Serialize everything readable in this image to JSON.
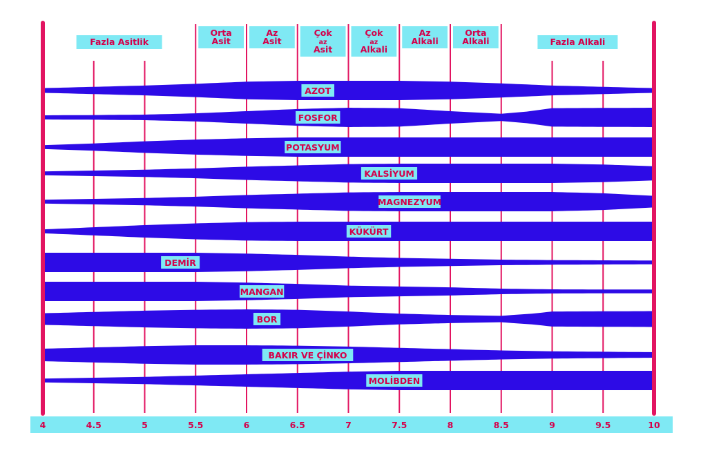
{
  "chart_data": {
    "type": "area",
    "x_axis": {
      "ticks": [
        "4",
        "4.5",
        "5",
        "5.5",
        "6",
        "6.5",
        "7",
        "7.5",
        "8",
        "8.5",
        "9",
        "9.5",
        "10"
      ],
      "range": [
        4,
        10
      ]
    },
    "zones": [
      {
        "label": "Fazla Asitlik",
        "from": 4,
        "to": 5.5
      },
      {
        "label": "Orta Asit",
        "from": 5.5,
        "to": 6
      },
      {
        "label": "Az Asit",
        "from": 6,
        "to": 6.5
      },
      {
        "label": "Çok az Asit",
        "from": 6.5,
        "to": 7
      },
      {
        "label": "Çok az Alkali",
        "from": 7,
        "to": 7.5
      },
      {
        "label": "Az Alkali",
        "from": 7.5,
        "to": 8
      },
      {
        "label": "Orta Alkali",
        "from": 8,
        "to": 8.5
      },
      {
        "label": "Fazla Alkali",
        "from": 8.5,
        "to": 10
      }
    ],
    "series": [
      {
        "name": "AZOT",
        "label_at": 6.7,
        "points": [
          [
            4,
            0.15
          ],
          [
            4.5,
            0.3
          ],
          [
            5,
            0.45
          ],
          [
            5.5,
            0.65
          ],
          [
            6,
            0.9
          ],
          [
            6.5,
            1
          ],
          [
            7,
            1
          ],
          [
            7.5,
            1
          ],
          [
            8,
            0.9
          ],
          [
            8.5,
            0.7
          ],
          [
            9,
            0.45
          ],
          [
            9.5,
            0.3
          ],
          [
            10,
            0.15
          ]
        ]
      },
      {
        "name": "FOSFOR",
        "label_at": 6.7,
        "points": [
          [
            4,
            0.12
          ],
          [
            4.5,
            0.15
          ],
          [
            5,
            0.2
          ],
          [
            5.5,
            0.35
          ],
          [
            6,
            0.6
          ],
          [
            6.5,
            0.85
          ],
          [
            7,
            1
          ],
          [
            7.5,
            0.95
          ],
          [
            8,
            0.6
          ],
          [
            8.5,
            0.3
          ],
          [
            8.75,
            0.55
          ],
          [
            9,
            0.95
          ],
          [
            10,
            1
          ]
        ]
      },
      {
        "name": "POTASYUM",
        "label_at": 6.65,
        "points": [
          [
            4,
            0.1
          ],
          [
            4.5,
            0.3
          ],
          [
            5,
            0.55
          ],
          [
            5.5,
            0.75
          ],
          [
            6,
            0.9
          ],
          [
            6.5,
            1
          ],
          [
            7,
            1
          ],
          [
            7.5,
            1
          ],
          [
            8,
            1
          ],
          [
            8.5,
            1
          ],
          [
            9,
            1
          ],
          [
            9.5,
            1
          ],
          [
            10,
            1
          ]
        ]
      },
      {
        "name": "KALSİYUM",
        "label_at": 7.4,
        "points": [
          [
            4,
            0.1
          ],
          [
            4.5,
            0.2
          ],
          [
            5,
            0.3
          ],
          [
            5.5,
            0.45
          ],
          [
            6,
            0.65
          ],
          [
            6.5,
            0.8
          ],
          [
            7,
            0.95
          ],
          [
            7.5,
            1
          ],
          [
            8,
            1
          ],
          [
            8.5,
            1
          ],
          [
            9,
            1
          ],
          [
            9.5,
            0.9
          ],
          [
            10,
            0.7
          ]
        ]
      },
      {
        "name": "MAGNEZYUM",
        "label_at": 7.6,
        "points": [
          [
            4,
            0.1
          ],
          [
            4.5,
            0.2
          ],
          [
            5,
            0.3
          ],
          [
            5.5,
            0.45
          ],
          [
            6,
            0.65
          ],
          [
            6.5,
            0.8
          ],
          [
            7,
            0.95
          ],
          [
            7.5,
            1
          ],
          [
            8,
            1
          ],
          [
            8.5,
            1
          ],
          [
            9,
            1
          ],
          [
            9.5,
            0.85
          ],
          [
            10,
            0.55
          ]
        ]
      },
      {
        "name": "KÜKÜRT",
        "label_at": 7.2,
        "points": [
          [
            4,
            0.1
          ],
          [
            4.5,
            0.35
          ],
          [
            5,
            0.6
          ],
          [
            5.5,
            0.8
          ],
          [
            6,
            0.95
          ],
          [
            6.5,
            1
          ],
          [
            7,
            1
          ],
          [
            7.5,
            1
          ],
          [
            8,
            1
          ],
          [
            8.5,
            1
          ],
          [
            9,
            1
          ],
          [
            9.5,
            1
          ],
          [
            10,
            1
          ]
        ]
      },
      {
        "name": "DEMİR",
        "label_at": 5.35,
        "points": [
          [
            4,
            1
          ],
          [
            4.5,
            1
          ],
          [
            5,
            1
          ],
          [
            5.5,
            1
          ],
          [
            6,
            0.9
          ],
          [
            6.5,
            0.75
          ],
          [
            7,
            0.55
          ],
          [
            7.5,
            0.4
          ],
          [
            8,
            0.3
          ],
          [
            8.5,
            0.2
          ],
          [
            9,
            0.15
          ],
          [
            9.5,
            0.12
          ],
          [
            10,
            0.1
          ]
        ]
      },
      {
        "name": "MANGAN",
        "label_at": 6.15,
        "points": [
          [
            4,
            1
          ],
          [
            4.5,
            1
          ],
          [
            5,
            1
          ],
          [
            5.5,
            1
          ],
          [
            6,
            0.9
          ],
          [
            6.5,
            0.75
          ],
          [
            7,
            0.55
          ],
          [
            7.5,
            0.45
          ],
          [
            8,
            0.35
          ],
          [
            8.5,
            0.2
          ],
          [
            9,
            0.12
          ],
          [
            9.5,
            0.1
          ],
          [
            10,
            0.1
          ]
        ]
      },
      {
        "name": "BOR",
        "label_at": 6.2,
        "points": [
          [
            4,
            0.55
          ],
          [
            4.5,
            0.7
          ],
          [
            5,
            0.85
          ],
          [
            5.5,
            0.95
          ],
          [
            6,
            1
          ],
          [
            6.5,
            0.95
          ],
          [
            7,
            0.75
          ],
          [
            7.5,
            0.5
          ],
          [
            8,
            0.35
          ],
          [
            8.5,
            0.25
          ],
          [
            8.8,
            0.5
          ],
          [
            9,
            0.75
          ],
          [
            10,
            0.8
          ]
        ]
      },
      {
        "name": "BAKIR VE ÇİNKO",
        "label_at": 6.6,
        "points": [
          [
            4,
            0.6
          ],
          [
            4.5,
            0.75
          ],
          [
            5,
            0.9
          ],
          [
            5.5,
            1
          ],
          [
            6,
            1
          ],
          [
            6.5,
            0.95
          ],
          [
            7,
            0.85
          ],
          [
            7.5,
            0.7
          ],
          [
            8,
            0.55
          ],
          [
            8.5,
            0.4
          ],
          [
            9,
            0.3
          ],
          [
            9.5,
            0.25
          ],
          [
            10,
            0.2
          ]
        ]
      },
      {
        "name": "MOLİBDEN",
        "label_at": 7.45,
        "points": [
          [
            4,
            0.1
          ],
          [
            4.5,
            0.2
          ],
          [
            5,
            0.3
          ],
          [
            5.5,
            0.45
          ],
          [
            6,
            0.6
          ],
          [
            6.5,
            0.75
          ],
          [
            7,
            0.9
          ],
          [
            7.5,
            1
          ],
          [
            8,
            1
          ],
          [
            8.5,
            1
          ],
          [
            9,
            1
          ],
          [
            9.5,
            1
          ],
          [
            10,
            1
          ]
        ]
      }
    ],
    "colors": {
      "band": "#2d0be6",
      "label_fill": "#7fe9f4",
      "label_text": "#d4004a",
      "axis_line": "#e21461",
      "axis_bar": "#7fe9f4"
    }
  }
}
